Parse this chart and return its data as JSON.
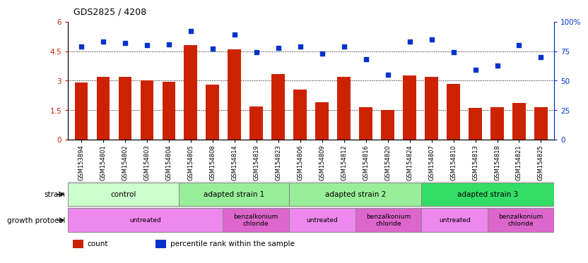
{
  "title": "GDS2825 / 4208",
  "samples": [
    "GSM153894",
    "GSM154801",
    "GSM154802",
    "GSM154803",
    "GSM154804",
    "GSM154805",
    "GSM154808",
    "GSM154814",
    "GSM154819",
    "GSM154823",
    "GSM154806",
    "GSM154809",
    "GSM154812",
    "GSM154816",
    "GSM154820",
    "GSM154824",
    "GSM154807",
    "GSM154810",
    "GSM154813",
    "GSM154818",
    "GSM154821",
    "GSM154825"
  ],
  "counts": [
    2.9,
    3.2,
    3.2,
    3.0,
    2.95,
    4.8,
    2.8,
    4.6,
    1.7,
    3.35,
    2.55,
    1.9,
    3.2,
    1.65,
    1.5,
    3.25,
    3.2,
    2.85,
    1.6,
    1.65,
    1.85,
    1.65
  ],
  "percentiles": [
    79,
    83,
    82,
    80,
    81,
    92,
    77,
    89,
    74,
    78,
    79,
    73,
    79,
    68,
    55,
    83,
    85,
    74,
    59,
    63,
    80,
    70
  ],
  "bar_color": "#cc2200",
  "dot_color": "#0033cc",
  "ylim_left": [
    0,
    6
  ],
  "ylim_right": [
    0,
    100
  ],
  "yticks_left": [
    0,
    1.5,
    3.0,
    4.5,
    6.0
  ],
  "yticks_right": [
    0,
    25,
    50,
    75,
    100
  ],
  "ytick_labels_left": [
    "0",
    "1.5",
    "3",
    "4.5",
    "6"
  ],
  "ytick_labels_right": [
    "0",
    "25",
    "50",
    "75",
    "100%"
  ],
  "hlines": [
    1.5,
    3.0,
    4.5
  ],
  "strain_groups": [
    {
      "label": "control",
      "start": 0,
      "end": 5,
      "color": "#ccffcc"
    },
    {
      "label": "adapted strain 1",
      "start": 5,
      "end": 10,
      "color": "#99ee99"
    },
    {
      "label": "adapted strain 2",
      "start": 10,
      "end": 16,
      "color": "#99ee99"
    },
    {
      "label": "adapted strain 3",
      "start": 16,
      "end": 22,
      "color": "#33dd66"
    }
  ],
  "protocol_groups": [
    {
      "label": "untreated",
      "start": 0,
      "end": 7,
      "color": "#ee88ee"
    },
    {
      "label": "benzalkonium\nchloride",
      "start": 7,
      "end": 10,
      "color": "#dd66cc"
    },
    {
      "label": "untreated",
      "start": 10,
      "end": 13,
      "color": "#ee88ee"
    },
    {
      "label": "benzalkonium\nchloride",
      "start": 13,
      "end": 16,
      "color": "#dd66cc"
    },
    {
      "label": "untreated",
      "start": 16,
      "end": 19,
      "color": "#ee88ee"
    },
    {
      "label": "benzalkonium\nchloride",
      "start": 19,
      "end": 22,
      "color": "#dd66cc"
    }
  ],
  "legend_items": [
    {
      "label": "count",
      "color": "#cc2200"
    },
    {
      "label": "percentile rank within the sample",
      "color": "#0033cc"
    }
  ],
  "bg_color": "#f0f0f0"
}
